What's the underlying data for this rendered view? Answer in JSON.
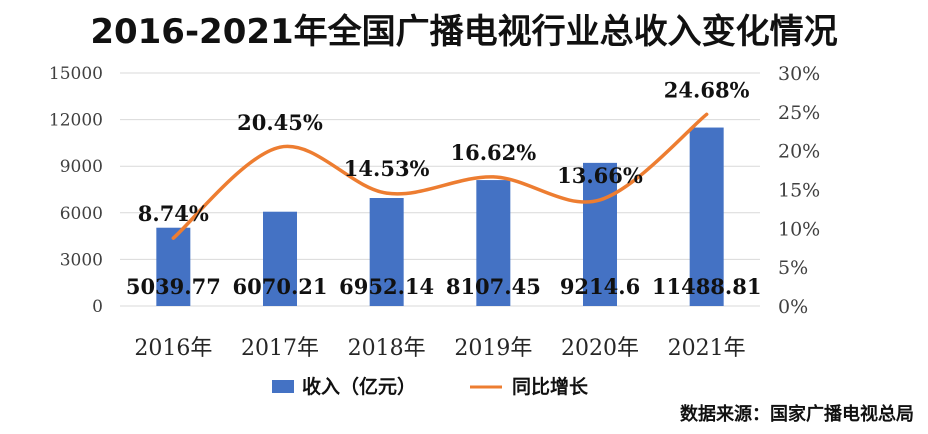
{
  "chart_data": {
    "type": "bar",
    "title": "2016-2021年全国广播电视行业总收入变化情况",
    "categories": [
      "2016年",
      "2017年",
      "2018年",
      "2019年",
      "2020年",
      "2021年"
    ],
    "series": [
      {
        "name": "收入（亿元）",
        "type": "bar",
        "axis": "left",
        "values": [
          5039.77,
          6070.21,
          6952.14,
          8107.45,
          9214.6,
          11488.81
        ],
        "labels": [
          "5039.77",
          "6070.21",
          "6952.14",
          "8107.45",
          "9214.6",
          "11488.81"
        ],
        "color": "#4472C4"
      },
      {
        "name": "同比增长",
        "type": "line",
        "axis": "right",
        "values": [
          8.74,
          20.45,
          14.53,
          16.62,
          13.66,
          24.68
        ],
        "labels": [
          "8.74%",
          "20.45%",
          "14.53%",
          "16.62%",
          "13.66%",
          "24.68%"
        ],
        "color": "#ED7D31"
      }
    ],
    "y_left": {
      "ylim": [
        0,
        15000
      ],
      "ticks": [
        "0",
        "3000",
        "6000",
        "9000",
        "12000",
        "15000"
      ]
    },
    "y_right": {
      "ylim": [
        0,
        30
      ],
      "ticks": [
        "0%",
        "5%",
        "10%",
        "15%",
        "20%",
        "25%",
        "30%"
      ]
    },
    "grid": true,
    "legend_position": "bottom"
  },
  "source_note": "数据来源：国家广播电视总局"
}
